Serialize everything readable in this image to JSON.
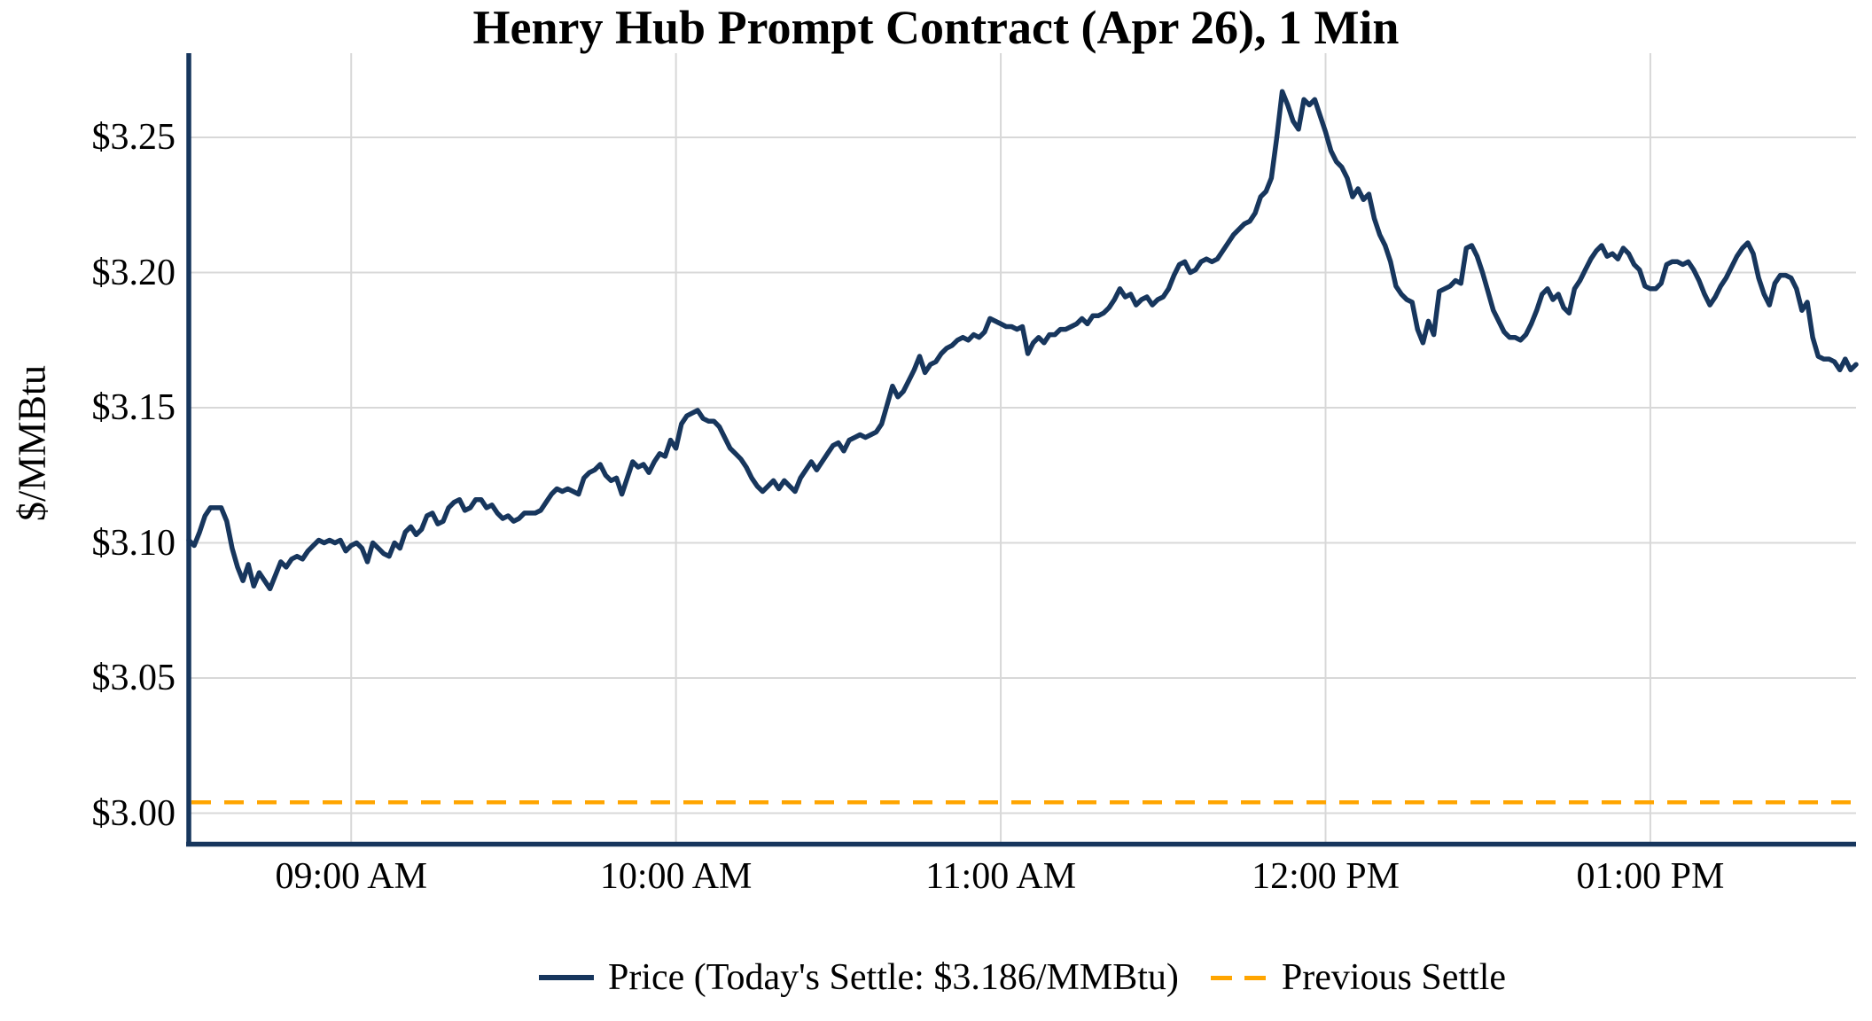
{
  "title": "Henry Hub Prompt Contract (Apr 26), 1 Min",
  "y_axis": {
    "label": "$/MMBtu",
    "tick_labels": [
      "$3.00",
      "$3.05",
      "$3.10",
      "$3.15",
      "$3.20",
      "$3.25"
    ],
    "tick_values": [
      3.0,
      3.05,
      3.1,
      3.15,
      3.2,
      3.25
    ]
  },
  "x_axis": {
    "tick_labels": [
      "09:00 AM",
      "10:00 AM",
      "11:00 AM",
      "12:00 PM",
      "01:00 PM"
    ],
    "tick_minutes": [
      30,
      90,
      150,
      210,
      270
    ]
  },
  "legend": {
    "price_label": "Price (Today's Settle: $3.186/MMBtu)",
    "previous_settle_label": "Previous Settle"
  },
  "colors": {
    "price_line": "#17365D",
    "previous_settle_line": "#FFA500",
    "gridline": "#D8D8D8",
    "axis": "#17365D",
    "text": "#000000",
    "background": "#FFFFFF"
  },
  "chart_data": {
    "type": "line",
    "title": "Henry Hub Prompt Contract (Apr 26), 1 Min",
    "xlabel": "",
    "ylabel": "$/MMBtu",
    "x_start_time": "08:30 AM",
    "x_end_time": "01:38 PM",
    "minutes_per_point": 1,
    "total_minutes": 308,
    "ylim": [
      2.988,
      3.281
    ],
    "grid": true,
    "legend_position": "bottom",
    "today_settle": 3.186,
    "previous_settle": 3.004,
    "series": [
      {
        "name": "Price",
        "style": "solid",
        "values": [
          3.101,
          3.099,
          3.104,
          3.11,
          3.113,
          3.113,
          3.113,
          3.108,
          3.098,
          3.091,
          3.086,
          3.092,
          3.084,
          3.089,
          3.086,
          3.083,
          3.088,
          3.093,
          3.091,
          3.094,
          3.095,
          3.094,
          3.097,
          3.099,
          3.101,
          3.1,
          3.101,
          3.1,
          3.101,
          3.097,
          3.099,
          3.1,
          3.098,
          3.093,
          3.1,
          3.098,
          3.096,
          3.095,
          3.1,
          3.098,
          3.104,
          3.106,
          3.103,
          3.105,
          3.11,
          3.111,
          3.107,
          3.108,
          3.113,
          3.115,
          3.116,
          3.112,
          3.113,
          3.116,
          3.116,
          3.113,
          3.114,
          3.111,
          3.109,
          3.11,
          3.108,
          3.109,
          3.111,
          3.111,
          3.111,
          3.112,
          3.115,
          3.118,
          3.12,
          3.119,
          3.12,
          3.119,
          3.118,
          3.124,
          3.126,
          3.127,
          3.129,
          3.125,
          3.123,
          3.124,
          3.118,
          3.124,
          3.13,
          3.128,
          3.129,
          3.126,
          3.13,
          3.133,
          3.132,
          3.138,
          3.135,
          3.144,
          3.147,
          3.148,
          3.149,
          3.146,
          3.145,
          3.145,
          3.143,
          3.139,
          3.135,
          3.133,
          3.131,
          3.128,
          3.124,
          3.121,
          3.119,
          3.121,
          3.123,
          3.12,
          3.123,
          3.121,
          3.119,
          3.124,
          3.127,
          3.13,
          3.127,
          3.13,
          3.133,
          3.136,
          3.137,
          3.134,
          3.138,
          3.139,
          3.14,
          3.139,
          3.14,
          3.141,
          3.144,
          3.151,
          3.158,
          3.154,
          3.156,
          3.16,
          3.164,
          3.169,
          3.163,
          3.166,
          3.167,
          3.17,
          3.172,
          3.173,
          3.175,
          3.176,
          3.175,
          3.177,
          3.176,
          3.178,
          3.183,
          3.182,
          3.181,
          3.18,
          3.18,
          3.179,
          3.18,
          3.17,
          3.174,
          3.176,
          3.174,
          3.177,
          3.177,
          3.179,
          3.179,
          3.18,
          3.181,
          3.183,
          3.181,
          3.184,
          3.184,
          3.185,
          3.187,
          3.19,
          3.194,
          3.191,
          3.192,
          3.188,
          3.19,
          3.191,
          3.188,
          3.19,
          3.191,
          3.194,
          3.199,
          3.203,
          3.204,
          3.2,
          3.201,
          3.204,
          3.205,
          3.204,
          3.205,
          3.208,
          3.211,
          3.214,
          3.216,
          3.218,
          3.219,
          3.222,
          3.228,
          3.23,
          3.235,
          3.25,
          3.267,
          3.262,
          3.256,
          3.253,
          3.264,
          3.262,
          3.264,
          3.258,
          3.252,
          3.245,
          3.241,
          3.239,
          3.235,
          3.228,
          3.231,
          3.227,
          3.229,
          3.22,
          3.214,
          3.21,
          3.204,
          3.195,
          3.192,
          3.19,
          3.189,
          3.179,
          3.174,
          3.182,
          3.177,
          3.193,
          3.194,
          3.195,
          3.197,
          3.196,
          3.209,
          3.21,
          3.206,
          3.2,
          3.193,
          3.186,
          3.182,
          3.178,
          3.176,
          3.176,
          3.175,
          3.177,
          3.181,
          3.186,
          3.192,
          3.194,
          3.19,
          3.192,
          3.187,
          3.185,
          3.194,
          3.197,
          3.201,
          3.205,
          3.208,
          3.21,
          3.206,
          3.207,
          3.205,
          3.209,
          3.207,
          3.203,
          3.201,
          3.195,
          3.194,
          3.194,
          3.196,
          3.203,
          3.204,
          3.204,
          3.203,
          3.204,
          3.201,
          3.197,
          3.192,
          3.188,
          3.191,
          3.195,
          3.198,
          3.202,
          3.206,
          3.209,
          3.211,
          3.207,
          3.198,
          3.192,
          3.188,
          3.196,
          3.199,
          3.199,
          3.198,
          3.194,
          3.186,
          3.189,
          3.176,
          3.169,
          3.168,
          3.168,
          3.167,
          3.164,
          3.168,
          3.164,
          3.166
        ]
      },
      {
        "name": "Previous Settle",
        "style": "dashed-horizontal",
        "value": 3.004
      }
    ]
  }
}
